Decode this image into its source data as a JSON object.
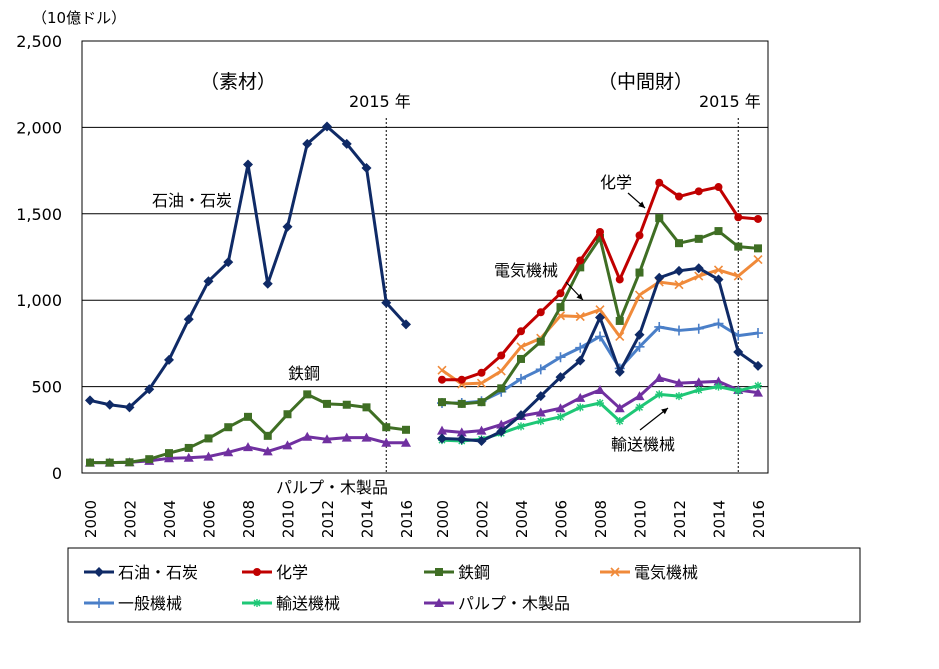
{
  "chart_data": {
    "type": "line",
    "unit_label": "（10億ドル）",
    "yticks": [
      "0",
      "500",
      "1,000",
      "1,500",
      "2,000",
      "2,500"
    ],
    "ylim": [
      0,
      2500
    ],
    "grid": true,
    "legend_position": "bottom",
    "panels": [
      {
        "title": "（素材）",
        "marker_label": "2015 年",
        "marker_year": 2015,
        "x": [
          2000,
          2001,
          2002,
          2003,
          2004,
          2005,
          2006,
          2007,
          2008,
          2009,
          2010,
          2011,
          2012,
          2013,
          2014,
          2015,
          2016
        ],
        "xtick_labels": [
          "2000",
          "2002",
          "2004",
          "2006",
          "2008",
          "2010",
          "2012",
          "2014",
          "2016"
        ],
        "series": [
          {
            "name": "石油・石炭",
            "values": [
              420,
              395,
              380,
              485,
              655,
              890,
              1110,
              1220,
              1785,
              1095,
              1425,
              1905,
              2005,
              1905,
              1765,
              985,
              860
            ]
          },
          {
            "name": "鉄鋼",
            "values": [
              60,
              60,
              62,
              80,
              115,
              145,
              200,
              265,
              325,
              215,
              340,
              455,
              400,
              395,
              380,
              265,
              250
            ]
          },
          {
            "name": "パルプ・木製品",
            "values": [
              60,
              60,
              62,
              70,
              85,
              88,
              95,
              120,
              150,
              125,
              160,
              210,
              195,
              205,
              205,
              175,
              175
            ]
          }
        ],
        "annotations": [
          "石油・石炭",
          "鉄鋼",
          "パルプ・木製品"
        ]
      },
      {
        "title": "（中間財）",
        "marker_label": "2015 年",
        "marker_year": 2015,
        "x": [
          2000,
          2001,
          2002,
          2003,
          2004,
          2005,
          2006,
          2007,
          2008,
          2009,
          2010,
          2011,
          2012,
          2013,
          2014,
          2015,
          2016
        ],
        "xtick_labels": [
          "2000",
          "2002",
          "2004",
          "2006",
          "2008",
          "2010",
          "2012",
          "2014",
          "2016"
        ],
        "series": [
          {
            "name": "石油・石炭",
            "values": [
              200,
              195,
              185,
              240,
              335,
              445,
              555,
              650,
              900,
              585,
              800,
              1130,
              1170,
              1185,
              1120,
              700,
              620
            ]
          },
          {
            "name": "化学",
            "values": [
              540,
              540,
              580,
              680,
              820,
              930,
              1040,
              1230,
              1395,
              1120,
              1375,
              1680,
              1600,
              1630,
              1655,
              1480,
              1470
            ]
          },
          {
            "name": "鉄鋼",
            "values": [
              410,
              400,
              410,
              490,
              660,
              760,
              960,
              1190,
              1360,
              880,
              1160,
              1475,
              1330,
              1355,
              1400,
              1310,
              1300
            ]
          },
          {
            "name": "電気機械",
            "values": [
              595,
              515,
              520,
              590,
              730,
              780,
              910,
              905,
              945,
              790,
              1030,
              1105,
              1090,
              1140,
              1175,
              1140,
              1235
            ]
          },
          {
            "name": "一般機械",
            "values": [
              405,
              405,
              415,
              470,
              545,
              600,
              670,
              725,
              790,
              605,
              730,
              845,
              825,
              835,
              865,
              795,
              810
            ]
          },
          {
            "name": "輸送機械",
            "values": [
              190,
              185,
              195,
              230,
              270,
              300,
              325,
              380,
              405,
              300,
              380,
              455,
              445,
              480,
              500,
              475,
              505
            ]
          },
          {
            "name": "パルプ・木製品",
            "values": [
              245,
              235,
              245,
              280,
              330,
              350,
              375,
              435,
              480,
              375,
              445,
              550,
              520,
              525,
              530,
              480,
              465
            ]
          }
        ],
        "annotations": [
          "化学",
          "電気機械",
          "輸送機械"
        ]
      }
    ],
    "legend": [
      {
        "name": "石油・石炭",
        "color": "#0f2a66",
        "marker": "diamond"
      },
      {
        "name": "化学",
        "color": "#c00000",
        "marker": "circle"
      },
      {
        "name": "鉄鋼",
        "color": "#3f6e24",
        "marker": "square"
      },
      {
        "name": "電気機械",
        "color": "#f08a3a",
        "marker": "x"
      },
      {
        "name": "一般機械",
        "color": "#4a7fc8",
        "marker": "plus"
      },
      {
        "name": "輸送機械",
        "color": "#1ec776",
        "marker": "star"
      },
      {
        "name": "パルプ・木製品",
        "color": "#7030a0",
        "marker": "triangle"
      }
    ]
  }
}
